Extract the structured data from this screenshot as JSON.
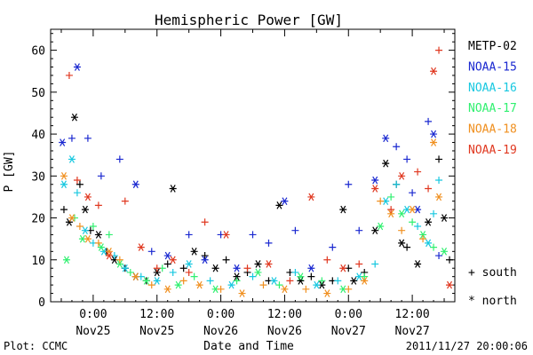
{
  "chart_data": {
    "type": "scatter",
    "title": "Hemispheric Power [GW]",
    "xlabel": "Date and Time",
    "ylabel": "P [GW]",
    "ylim": [
      0,
      65
    ],
    "yticks": [
      0,
      10,
      20,
      30,
      40,
      50,
      60
    ],
    "xlim_hours": [
      -8,
      68
    ],
    "xticks": [
      {
        "time": "0:00",
        "date": "Nov25",
        "hour": 0
      },
      {
        "time": "12:00",
        "date": "Nov25",
        "hour": 12
      },
      {
        "time": "0:00",
        "date": "Nov26",
        "hour": 24
      },
      {
        "time": "12:00",
        "date": "Nov26",
        "hour": 36
      },
      {
        "time": "0:00",
        "date": "Nov27",
        "hour": 48
      },
      {
        "time": "12:00",
        "date": "Nov27",
        "hour": 60
      }
    ],
    "legend_placement": "right",
    "marker_legend": {
      "plus": "+ south",
      "star": "* north"
    },
    "series": [
      {
        "name": "METP-02",
        "color": "#000000",
        "x": [
          -5.5,
          -4.5,
          -3.5,
          -2.5,
          -1.5,
          -0.5,
          1,
          2.5,
          4,
          6,
          8,
          10,
          12,
          14,
          15,
          17,
          19,
          21,
          23,
          25,
          27,
          29,
          31,
          33,
          35,
          37,
          39,
          41,
          43,
          45,
          47,
          48,
          49,
          51,
          53,
          55,
          57,
          58,
          59,
          61,
          63,
          65,
          66,
          67
        ],
        "y": [
          22,
          19,
          44,
          28,
          22,
          17,
          16,
          12,
          10,
          8,
          6,
          5,
          7,
          9,
          27,
          8,
          12,
          11,
          8,
          10,
          6,
          7,
          9,
          5,
          23,
          7,
          5,
          6,
          4,
          5,
          22,
          8,
          5,
          7,
          17,
          33,
          28,
          14,
          13,
          9,
          19,
          34,
          20,
          10
        ],
        "marker": [
          "plus",
          "star",
          "star",
          "plus",
          "star",
          "plus",
          "star",
          "plus",
          "star",
          "plus",
          "star",
          "plus",
          "star",
          "plus",
          "star",
          "plus",
          "star",
          "plus",
          "star",
          "plus",
          "star",
          "plus",
          "star",
          "plus",
          "star",
          "plus",
          "star",
          "plus",
          "star",
          "plus",
          "star",
          "plus",
          "star",
          "plus",
          "star",
          "star",
          "plus",
          "star",
          "plus",
          "star",
          "star",
          "plus",
          "star",
          "plus"
        ]
      },
      {
        "name": "NOAA-15",
        "color": "#1a28d0",
        "x": [
          -5.8,
          -4,
          -3,
          -1,
          1.5,
          5,
          8,
          11,
          14,
          18,
          21,
          24,
          27,
          30,
          33,
          36,
          38,
          41,
          45,
          48,
          50,
          53,
          55,
          57,
          59,
          60,
          61,
          63,
          64,
          65
        ],
        "y": [
          38,
          39,
          56,
          39,
          30,
          34,
          28,
          12,
          11,
          16,
          10,
          16,
          8,
          16,
          14,
          24,
          17,
          8,
          13,
          28,
          17,
          29,
          39,
          37,
          34,
          26,
          22,
          43,
          40,
          11
        ],
        "marker": [
          "star",
          "plus",
          "star",
          "plus",
          "plus",
          "plus",
          "star",
          "plus",
          "star",
          "plus",
          "star",
          "plus",
          "star",
          "plus",
          "plus",
          "star",
          "plus",
          "star",
          "plus",
          "plus",
          "plus",
          "star",
          "star",
          "plus",
          "plus",
          "plus",
          "star",
          "plus",
          "star",
          "plus"
        ]
      },
      {
        "name": "NOAA-16",
        "color": "#18c8e0",
        "x": [
          -5.5,
          -4,
          -3,
          -1.5,
          0,
          2,
          4,
          6,
          9,
          12,
          15,
          18,
          22,
          26,
          30,
          34,
          38,
          42,
          46,
          50,
          53,
          55,
          57,
          59,
          61,
          63,
          64,
          65
        ],
        "y": [
          28,
          34,
          26,
          17,
          14,
          12,
          11,
          8,
          6,
          5,
          7,
          9,
          5,
          4,
          6,
          5,
          7,
          4,
          5,
          6,
          9,
          24,
          28,
          22,
          18,
          14,
          21,
          29
        ],
        "marker": [
          "star",
          "star",
          "plus",
          "star",
          "plus",
          "star",
          "plus",
          "star",
          "plus",
          "star",
          "plus",
          "star",
          "plus",
          "star",
          "plus",
          "star",
          "plus",
          "star",
          "plus",
          "star",
          "plus",
          "star",
          "plus",
          "star",
          "plus",
          "star",
          "plus",
          "plus"
        ]
      },
      {
        "name": "NOAA-17",
        "color": "#30f070",
        "x": [
          -5,
          -3.5,
          -2,
          0,
          1.5,
          3,
          5,
          7,
          10,
          13,
          16,
          19,
          23,
          27,
          31,
          35,
          39,
          43,
          47,
          51,
          54,
          56,
          58,
          60,
          62,
          64,
          66
        ],
        "y": [
          10,
          20,
          15,
          18,
          13,
          16,
          9,
          7,
          5,
          8,
          4,
          6,
          3,
          5,
          7,
          4,
          6,
          5,
          3,
          6,
          18,
          25,
          21,
          19,
          16,
          13,
          12
        ],
        "marker": [
          "star",
          "plus",
          "star",
          "plus",
          "star",
          "plus",
          "star",
          "plus",
          "star",
          "plus",
          "star",
          "plus",
          "star",
          "plus",
          "star",
          "plus",
          "star",
          "plus",
          "star",
          "plus",
          "star",
          "plus",
          "star",
          "plus",
          "star",
          "plus",
          "star"
        ]
      },
      {
        "name": "NOAA-18",
        "color": "#f09020",
        "x": [
          -5.5,
          -4,
          -2.5,
          -1,
          1,
          3,
          5,
          8,
          11,
          14,
          17,
          20,
          24,
          28,
          32,
          36,
          40,
          44,
          48,
          51,
          54,
          56,
          58,
          60,
          62,
          64,
          65
        ],
        "y": [
          30,
          20,
          18,
          15,
          14,
          12,
          10,
          6,
          4,
          3,
          5,
          4,
          3,
          2,
          4,
          3,
          3,
          2,
          3,
          5,
          24,
          21,
          17,
          22,
          15,
          38,
          25
        ],
        "marker": [
          "star",
          "star",
          "plus",
          "star",
          "plus",
          "star",
          "plus",
          "star",
          "plus",
          "star",
          "plus",
          "star",
          "plus",
          "star",
          "plus",
          "star",
          "plus",
          "star",
          "plus",
          "star",
          "plus",
          "star",
          "plus",
          "star",
          "plus",
          "star",
          "star"
        ]
      },
      {
        "name": "NOAA-19",
        "color": "#e03820",
        "x": [
          -4.5,
          -3,
          -1,
          1,
          3,
          6,
          9,
          12,
          15,
          18,
          21,
          25,
          29,
          33,
          37,
          41,
          44,
          47,
          50,
          53,
          56,
          58,
          61,
          63,
          64,
          65,
          67
        ],
        "y": [
          54,
          29,
          25,
          23,
          11,
          24,
          13,
          8,
          10,
          7,
          19,
          16,
          8,
          9,
          5,
          25,
          10,
          8,
          9,
          27,
          22,
          30,
          31,
          27,
          55,
          60,
          4
        ],
        "marker": [
          "plus",
          "plus",
          "star",
          "plus",
          "star",
          "plus",
          "star",
          "plus",
          "star",
          "plus",
          "plus",
          "star",
          "plus",
          "star",
          "plus",
          "star",
          "plus",
          "star",
          "plus",
          "star",
          "plus",
          "star",
          "plus",
          "plus",
          "star",
          "plus",
          "star"
        ]
      }
    ]
  },
  "footer": {
    "plot_credit": "Plot: CCMC",
    "timestamp": "2011/11/27 20:00:06"
  }
}
